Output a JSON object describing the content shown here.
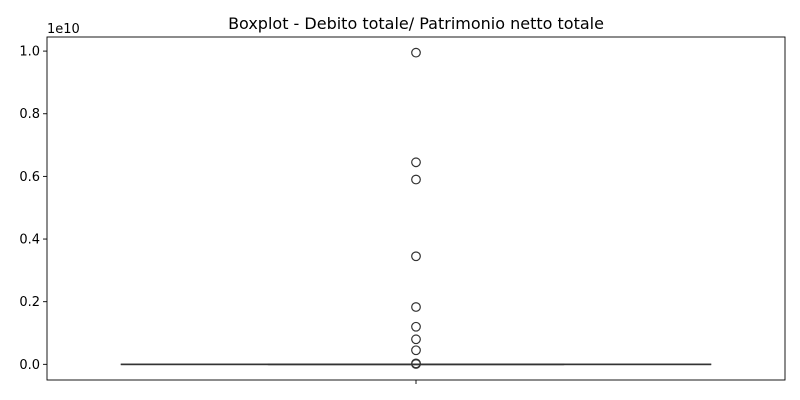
{
  "chart_data": {
    "type": "boxplot",
    "title": "Boxplot - Debito totale/ Patrimonio netto totale",
    "xlabel": "",
    "ylabel": "",
    "y_offset_label": "1e10",
    "ylim": [
      -0.05,
      1.045
    ],
    "yticks": [
      0.0,
      0.2,
      0.4,
      0.6,
      0.8,
      1.0
    ],
    "ytick_labels": [
      "0.0",
      "0.2",
      "0.4",
      "0.6",
      "0.8",
      "1.0"
    ],
    "grid": false,
    "series": [
      {
        "min": 0.0,
        "q1": 0.0,
        "median": 0.0,
        "q3": 0.0,
        "max": 0.0,
        "outliers": [
          0.995,
          0.645,
          0.59,
          0.345,
          0.183,
          0.12,
          0.08,
          0.045,
          0.003,
          0.001
        ],
        "box_color": "#333333",
        "outlier_color": "#333333"
      }
    ]
  }
}
